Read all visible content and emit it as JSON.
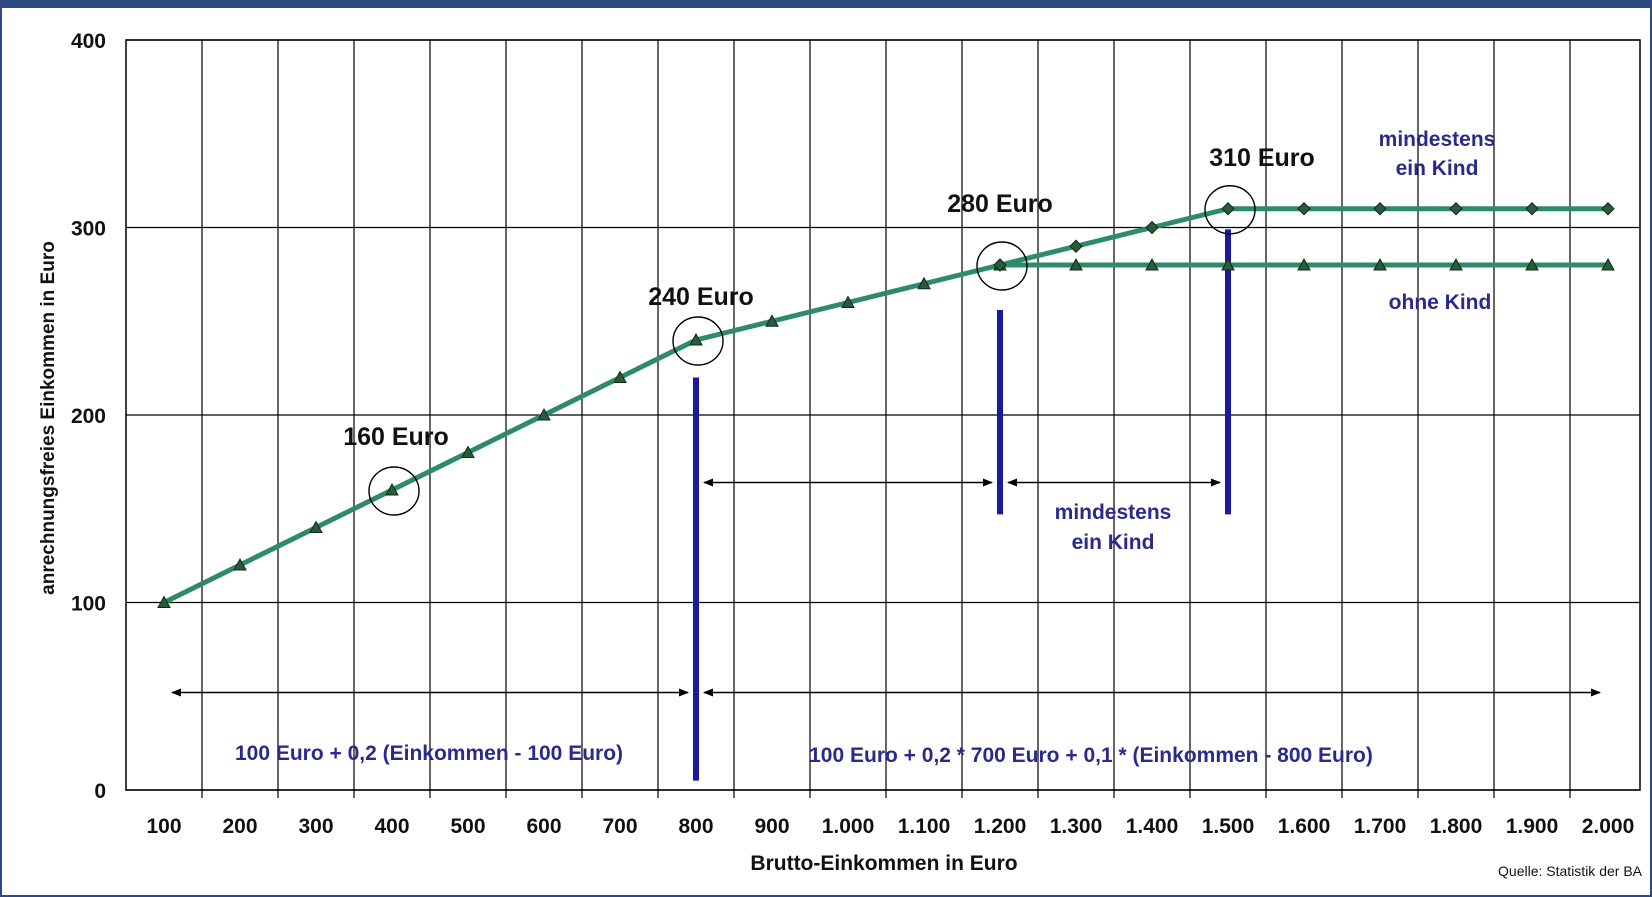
{
  "chart_data": {
    "type": "line",
    "title": "",
    "xlabel": "Brutto-Einkommen in Euro",
    "ylabel": "anrechnungsfreies Einkommen in Euro",
    "ylim": [
      0,
      400
    ],
    "y_ticks": [
      0,
      100,
      200,
      300,
      400
    ],
    "x": [
      100,
      200,
      300,
      400,
      500,
      600,
      700,
      800,
      900,
      1000,
      1100,
      1200,
      1300,
      1400,
      1500,
      1600,
      1700,
      1800,
      1900,
      2000
    ],
    "categories": [
      "100",
      "200",
      "300",
      "400",
      "500",
      "600",
      "700",
      "800",
      "900",
      "1.000",
      "1.100",
      "1.200",
      "1.300",
      "1.400",
      "1.500",
      "1.600",
      "1.700",
      "1.800",
      "1.900",
      "2.000"
    ],
    "grid": true,
    "series": [
      {
        "name": "ohne Kind",
        "color": "#2e8b6a",
        "marker": "triangle",
        "x": [
          100,
          200,
          300,
          400,
          500,
          600,
          700,
          800,
          900,
          1000,
          1100,
          1200,
          1300,
          1400,
          1500,
          1600,
          1700,
          1800,
          1900,
          2000
        ],
        "values": [
          100,
          120,
          140,
          160,
          180,
          200,
          220,
          240,
          250,
          260,
          270,
          280,
          280,
          280,
          280,
          280,
          280,
          280,
          280,
          280
        ]
      },
      {
        "name": "mindestens ein Kind",
        "color": "#2e8b6a",
        "marker": "diamond",
        "x": [
          1200,
          1300,
          1400,
          1500,
          1600,
          1700,
          1800,
          1900,
          2000
        ],
        "values": [
          280,
          290,
          300,
          310,
          310,
          310,
          310,
          310,
          310
        ]
      }
    ],
    "highlight_points": [
      {
        "x": 400,
        "y": 160,
        "label": "160 Euro"
      },
      {
        "x": 800,
        "y": 240,
        "label": "240 Euro"
      },
      {
        "x": 1200,
        "y": 280,
        "label": "280 Euro"
      },
      {
        "x": 1500,
        "y": 310,
        "label": "310 Euro"
      }
    ],
    "vertical_markers": [
      {
        "x": 800,
        "y_from": 5,
        "y_to": 220
      },
      {
        "x": 1200,
        "y_from": 147,
        "y_to": 256
      },
      {
        "x": 1500,
        "y_from": 147,
        "y_to": 299
      }
    ],
    "range_arrows": [
      {
        "x_from": 100,
        "x_to": 800,
        "y": 52
      },
      {
        "x_from": 800,
        "x_to": 2000,
        "y": 52
      },
      {
        "x_from": 800,
        "x_to": 1200,
        "y": 164
      },
      {
        "x_from": 1200,
        "x_to": 1500,
        "y": 164
      }
    ],
    "annotations": {
      "series_label_top": [
        "mindestens",
        "ein Kind"
      ],
      "series_label_bottom": "ohne Kind",
      "middle_label": [
        "mindestens",
        "ein Kind"
      ],
      "formula_left": "100 Euro + 0,2 (Einkommen - 100 Euro)",
      "formula_right": "100 Euro + 0,2 * 700 Euro + 0,1 * (Einkommen - 800 Euro)"
    },
    "source": "Quelle: Statistik der BA"
  }
}
